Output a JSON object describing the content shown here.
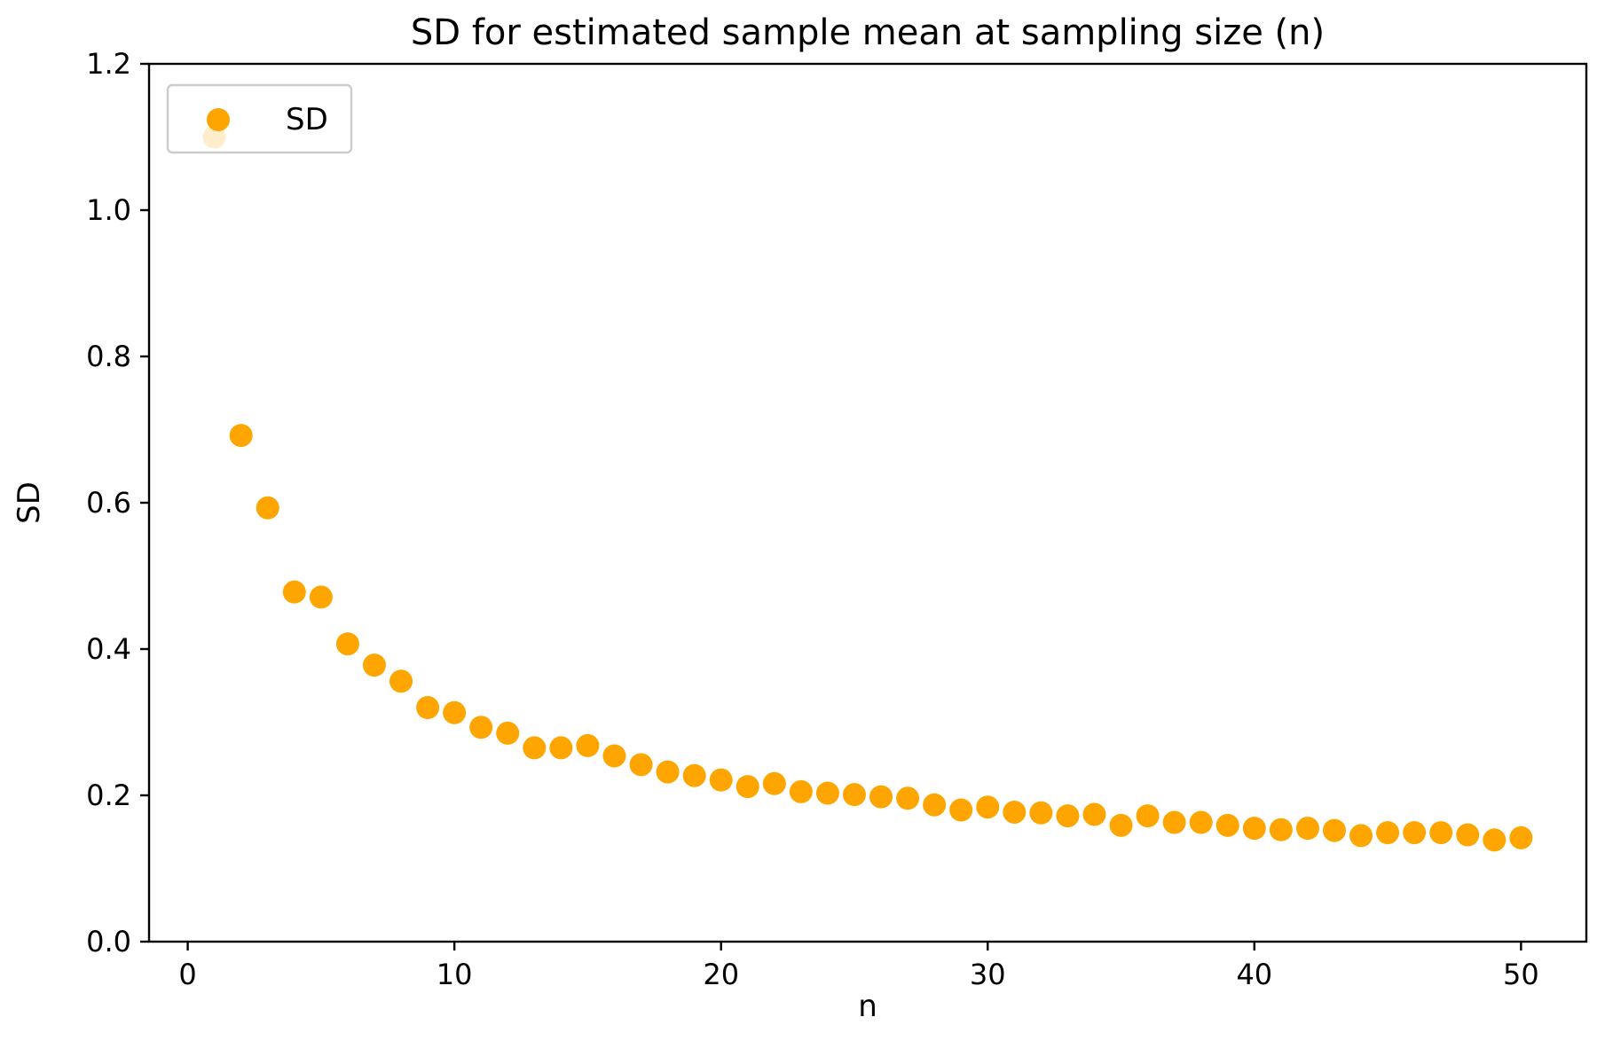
{
  "chart_data": {
    "type": "scatter",
    "title": "SD for estimated sample mean at sampling size (n)",
    "xlabel": "n",
    "ylabel": "SD",
    "xlim": [
      -1.45,
      52.45
    ],
    "ylim": [
      0.0,
      1.2
    ],
    "xticks": [
      0,
      10,
      20,
      30,
      40,
      50
    ],
    "xtick_labels": [
      "0",
      "10",
      "20",
      "30",
      "40",
      "50"
    ],
    "yticks": [
      0.0,
      0.2,
      0.4,
      0.6,
      0.8,
      1.0,
      1.2
    ],
    "ytick_labels": [
      "0.0",
      "0.2",
      "0.4",
      "0.6",
      "0.8",
      "1.0",
      "1.2"
    ],
    "grid": false,
    "legend_position": "top-left",
    "series": [
      {
        "name": "SD",
        "color": "#ffa500",
        "x": [
          1,
          2,
          3,
          4,
          5,
          6,
          7,
          8,
          9,
          10,
          11,
          12,
          13,
          14,
          15,
          16,
          17,
          18,
          19,
          20,
          21,
          22,
          23,
          24,
          25,
          26,
          27,
          28,
          29,
          30,
          31,
          32,
          33,
          34,
          35,
          36,
          37,
          38,
          39,
          40,
          41,
          42,
          43,
          44,
          45,
          46,
          47,
          48,
          49,
          50
        ],
        "y": [
          1.1,
          0.692,
          0.593,
          0.478,
          0.471,
          0.407,
          0.378,
          0.356,
          0.32,
          0.313,
          0.293,
          0.285,
          0.265,
          0.265,
          0.268,
          0.254,
          0.242,
          0.232,
          0.227,
          0.221,
          0.212,
          0.216,
          0.205,
          0.203,
          0.201,
          0.198,
          0.196,
          0.187,
          0.18,
          0.184,
          0.177,
          0.176,
          0.172,
          0.174,
          0.159,
          0.172,
          0.163,
          0.163,
          0.159,
          0.155,
          0.153,
          0.155,
          0.152,
          0.145,
          0.149,
          0.149,
          0.149,
          0.146,
          0.139,
          0.142
        ]
      }
    ]
  }
}
